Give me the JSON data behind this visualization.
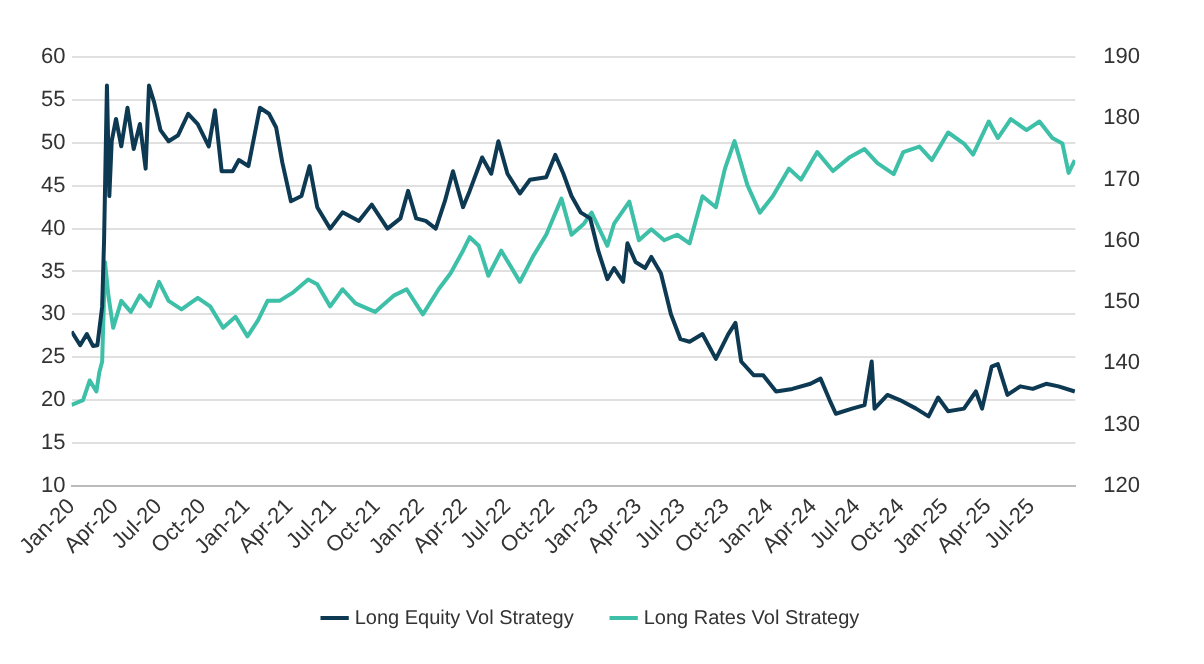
{
  "chart_data": {
    "type": "line",
    "xlim": [
      "2020-01-01",
      "2025-10-01"
    ],
    "xticks": [
      {
        "value": "2020-01",
        "label": "Jan-20"
      },
      {
        "value": "2020-04",
        "label": "Apr-20"
      },
      {
        "value": "2020-07",
        "label": "Jul-20"
      },
      {
        "value": "2020-10",
        "label": "Oct-20"
      },
      {
        "value": "2021-01",
        "label": "Jan-21"
      },
      {
        "value": "2021-04",
        "label": "Apr-21"
      },
      {
        "value": "2021-07",
        "label": "Jul-21"
      },
      {
        "value": "2021-10",
        "label": "Oct-21"
      },
      {
        "value": "2022-01",
        "label": "Jan-22"
      },
      {
        "value": "2022-04",
        "label": "Apr-22"
      },
      {
        "value": "2022-07",
        "label": "Jul-22"
      },
      {
        "value": "2022-10",
        "label": "Oct-22"
      },
      {
        "value": "2023-01",
        "label": "Jan-23"
      },
      {
        "value": "2023-04",
        "label": "Apr-23"
      },
      {
        "value": "2023-07",
        "label": "Jul-23"
      },
      {
        "value": "2023-10",
        "label": "Oct-23"
      },
      {
        "value": "2024-01",
        "label": "Jan-24"
      },
      {
        "value": "2024-04",
        "label": "Apr-24"
      },
      {
        "value": "2024-07",
        "label": "Jul-24"
      },
      {
        "value": "2024-10",
        "label": "Oct-24"
      },
      {
        "value": "2025-01",
        "label": "Jan-25"
      },
      {
        "value": "2025-04",
        "label": "Apr-25"
      },
      {
        "value": "2025-07",
        "label": "Jul-25"
      }
    ],
    "ylim": [
      10,
      60
    ],
    "yticks": [
      10,
      15,
      20,
      25,
      30,
      35,
      40,
      45,
      50,
      55,
      60
    ],
    "y2lim": [
      120,
      190
    ],
    "y2ticks": [
      120,
      130,
      140,
      150,
      160,
      170,
      180,
      190
    ],
    "grid": "y",
    "legend": "bottom",
    "marker": "none",
    "line_style": "solid",
    "series": [
      {
        "name": "Long Equity Vol Strategy",
        "color": "#0d3a52",
        "axis": "y",
        "x": [
          "2020-01-01",
          "2020-01-19",
          "2020-02-02",
          "2020-02-15",
          "2020-02-24",
          "2020-03-05",
          "2020-03-09",
          "2020-03-15",
          "2020-03-20",
          "2020-03-25",
          "2020-04-03",
          "2020-04-14",
          "2020-04-27",
          "2020-05-10",
          "2020-05-23",
          "2020-06-04",
          "2020-06-11",
          "2020-06-22",
          "2020-07-05",
          "2020-07-22",
          "2020-08-11",
          "2020-09-01",
          "2020-09-21",
          "2020-10-14",
          "2020-10-27",
          "2020-11-10",
          "2020-12-03",
          "2020-12-16",
          "2021-01-05",
          "2021-01-29",
          "2021-02-17",
          "2021-03-04",
          "2021-03-17",
          "2021-04-04",
          "2021-04-26",
          "2021-05-13",
          "2021-05-29",
          "2021-06-25",
          "2021-07-21",
          "2021-08-24",
          "2021-09-20",
          "2021-10-23",
          "2021-11-19",
          "2021-12-05",
          "2021-12-22",
          "2022-01-11",
          "2022-02-01",
          "2022-02-20",
          "2022-03-09",
          "2022-03-30",
          "2022-04-13",
          "2022-05-09",
          "2022-05-28",
          "2022-06-12",
          "2022-07-01",
          "2022-07-27",
          "2022-08-17",
          "2022-09-20",
          "2022-10-09",
          "2022-10-26",
          "2022-11-12",
          "2022-12-01",
          "2022-12-21",
          "2023-01-07",
          "2023-01-26",
          "2023-02-09",
          "2023-02-28",
          "2023-03-09",
          "2023-03-26",
          "2023-04-15",
          "2023-04-28",
          "2023-05-18",
          "2023-06-08",
          "2023-06-28",
          "2023-07-17",
          "2023-08-13",
          "2023-09-10",
          "2023-10-06",
          "2023-10-21",
          "2023-11-02",
          "2023-11-28",
          "2023-12-18",
          "2024-01-14",
          "2024-02-17",
          "2024-03-26",
          "2024-04-16",
          "2024-05-05",
          "2024-05-18",
          "2024-06-21",
          "2024-07-17",
          "2024-08-01",
          "2024-08-07",
          "2024-09-03",
          "2024-09-29",
          "2024-11-02",
          "2024-11-28",
          "2024-12-18",
          "2025-01-08",
          "2025-02-10",
          "2025-03-07",
          "2025-03-20",
          "2025-04-09",
          "2025-04-22",
          "2025-05-12",
          "2025-06-08",
          "2025-07-04",
          "2025-08-01",
          "2025-08-27",
          "2025-09-30"
        ],
        "values": [
          28.0,
          26.4,
          27.7,
          26.3,
          26.4,
          30.9,
          38.6,
          56.7,
          43.8,
          50.2,
          52.8,
          49.6,
          54.1,
          49.3,
          52.2,
          47.0,
          56.7,
          54.7,
          51.5,
          50.2,
          50.9,
          53.4,
          52.2,
          49.6,
          53.8,
          46.7,
          46.7,
          48.0,
          47.3,
          54.1,
          53.4,
          51.8,
          47.7,
          43.2,
          43.8,
          47.3,
          42.5,
          40.0,
          41.9,
          40.9,
          42.8,
          40.0,
          41.2,
          44.4,
          41.2,
          40.9,
          40.0,
          43.2,
          46.7,
          42.5,
          44.4,
          48.3,
          46.4,
          50.2,
          46.4,
          44.1,
          45.7,
          46.0,
          48.6,
          46.4,
          43.8,
          41.9,
          41.2,
          37.4,
          34.1,
          35.4,
          33.8,
          38.3,
          36.1,
          35.4,
          36.7,
          34.8,
          30.0,
          27.1,
          26.8,
          27.7,
          24.8,
          27.7,
          29.0,
          24.5,
          22.9,
          22.9,
          21.0,
          21.3,
          21.9,
          22.5,
          20.0,
          18.4,
          19.0,
          19.4,
          24.5,
          19.0,
          20.6,
          20.0,
          19.0,
          18.1,
          20.3,
          18.7,
          19.0,
          21.0,
          19.0,
          23.9,
          24.2,
          20.6,
          21.6,
          21.3,
          21.9,
          21.6,
          21.0
        ]
      },
      {
        "name": "Long Rates Vol Strategy",
        "color": "#3dbfa8",
        "axis": "y2",
        "x": [
          "2020-01-01",
          "2020-01-25",
          "2020-02-08",
          "2020-02-22",
          "2020-02-28",
          "2020-03-05",
          "2020-03-11",
          "2020-03-18",
          "2020-03-28",
          "2020-04-14",
          "2020-05-04",
          "2020-05-23",
          "2020-06-13",
          "2020-07-02",
          "2020-07-22",
          "2020-08-18",
          "2020-09-21",
          "2020-10-17",
          "2020-11-13",
          "2020-12-09",
          "2021-01-03",
          "2021-01-25",
          "2021-02-14",
          "2021-03-11",
          "2021-04-07",
          "2021-05-10",
          "2021-05-29",
          "2021-06-25",
          "2021-07-21",
          "2021-08-17",
          "2021-09-27",
          "2021-11-06",
          "2021-12-02",
          "2022-01-05",
          "2022-02-07",
          "2022-03-04",
          "2022-03-30",
          "2022-04-13",
          "2022-05-02",
          "2022-05-22",
          "2022-06-18",
          "2022-07-27",
          "2022-08-23",
          "2022-09-20",
          "2022-10-22",
          "2022-11-12",
          "2022-12-08",
          "2022-12-24",
          "2023-01-26",
          "2023-02-09",
          "2023-03-13",
          "2023-04-02",
          "2023-04-28",
          "2023-05-25",
          "2023-06-21",
          "2023-07-17",
          "2023-08-13",
          "2023-09-10",
          "2023-09-29",
          "2023-10-19",
          "2023-11-15",
          "2023-12-11",
          "2024-01-07",
          "2024-02-10",
          "2024-03-06",
          "2024-04-09",
          "2024-05-12",
          "2024-06-15",
          "2024-07-17",
          "2024-08-13",
          "2024-09-16",
          "2024-10-06",
          "2024-11-09",
          "2024-12-05",
          "2025-01-08",
          "2025-02-10",
          "2025-03-01",
          "2025-04-03",
          "2025-04-22",
          "2025-05-19",
          "2025-06-21",
          "2025-07-18",
          "2025-08-14",
          "2025-09-04",
          "2025-09-17",
          "2025-09-30"
        ],
        "values": [
          133.2,
          134.0,
          137.2,
          135.4,
          138.5,
          140.3,
          156.5,
          151.1,
          145.8,
          150.2,
          148.4,
          151.1,
          149.3,
          153.3,
          150.2,
          148.8,
          150.7,
          149.3,
          145.8,
          147.6,
          144.4,
          147.0,
          150.2,
          150.2,
          151.5,
          153.7,
          152.9,
          149.3,
          152.1,
          149.8,
          148.4,
          151.1,
          152.1,
          148.0,
          152.1,
          154.7,
          158.4,
          160.6,
          159.2,
          154.3,
          158.4,
          153.3,
          157.4,
          161.0,
          166.9,
          161.0,
          162.8,
          164.6,
          159.2,
          162.8,
          166.4,
          160.1,
          161.9,
          160.1,
          161.0,
          159.6,
          167.3,
          165.5,
          171.8,
          176.3,
          169.1,
          164.6,
          167.3,
          171.8,
          170.0,
          174.5,
          171.4,
          173.6,
          175.0,
          172.7,
          170.9,
          174.5,
          175.4,
          173.2,
          177.7,
          175.9,
          174.1,
          179.5,
          176.8,
          179.9,
          178.1,
          179.5,
          176.8,
          175.9,
          171.1,
          173.2
        ]
      }
    ]
  }
}
